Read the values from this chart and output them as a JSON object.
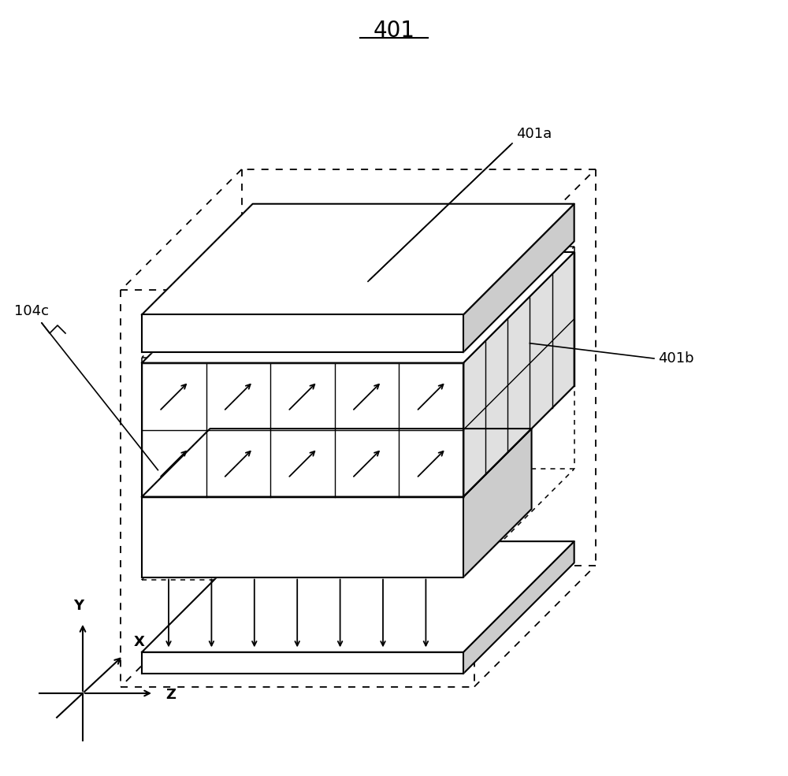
{
  "title": "401",
  "label_401a": "401a",
  "label_401b": "401b",
  "label_104c": "104c",
  "bg_color": "#ffffff",
  "line_color": "#000000",
  "figsize": [
    10.0,
    9.85
  ],
  "dpi": 100
}
